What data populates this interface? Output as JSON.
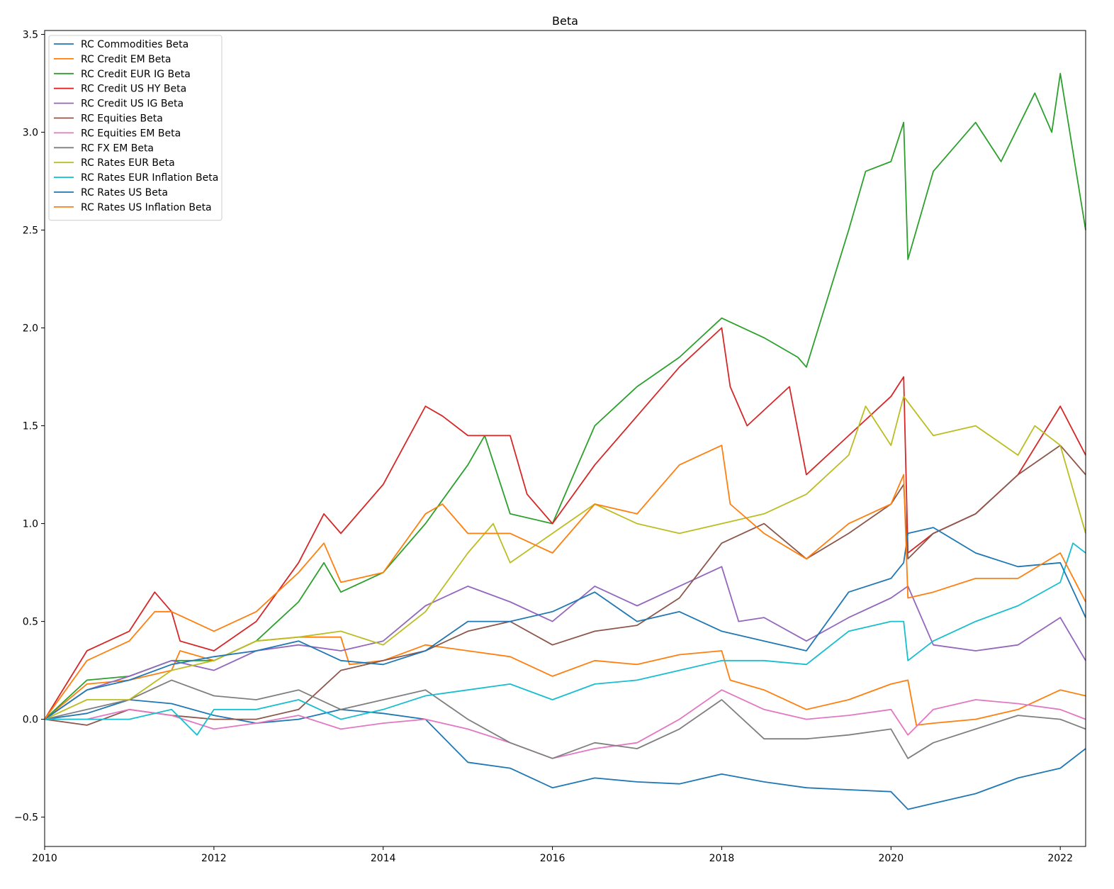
{
  "chart_data": {
    "type": "line",
    "title": "Beta",
    "xlabel": "",
    "ylabel": "",
    "xlim": [
      2010.0,
      2022.3
    ],
    "ylim": [
      -0.65,
      3.52
    ],
    "x_ticks": [
      2010,
      2012,
      2014,
      2016,
      2018,
      2020,
      2022
    ],
    "x_tick_labels": [
      "2010",
      "2012",
      "2014",
      "2016",
      "2018",
      "2020",
      "2022"
    ],
    "y_ticks": [
      -0.5,
      0.0,
      0.5,
      1.0,
      1.5,
      2.0,
      2.5,
      3.0,
      3.5
    ],
    "y_tick_labels": [
      "−0.5",
      "0.0",
      "0.5",
      "1.0",
      "1.5",
      "2.0",
      "2.5",
      "3.0",
      "3.5"
    ],
    "grid": false,
    "legend_position": "upper-left",
    "series": [
      {
        "name": "RC Commodities Beta",
        "color": "#1f77b4",
        "x": [
          2010.0,
          2010.5,
          2011.0,
          2011.5,
          2012.0,
          2012.5,
          2013.0,
          2013.5,
          2014.0,
          2014.5,
          2015.0,
          2015.5,
          2016.0,
          2016.5,
          2017.0,
          2017.5,
          2018.0,
          2018.5,
          2019.0,
          2019.5,
          2020.0,
          2020.2,
          2020.5,
          2021.0,
          2021.5,
          2022.0,
          2022.3
        ],
        "y": [
          0.0,
          0.03,
          0.1,
          0.08,
          0.02,
          -0.02,
          0.0,
          0.05,
          0.03,
          0.0,
          -0.22,
          -0.25,
          -0.35,
          -0.3,
          -0.32,
          -0.33,
          -0.28,
          -0.32,
          -0.35,
          -0.36,
          -0.37,
          -0.46,
          -0.43,
          -0.38,
          -0.3,
          -0.25,
          -0.15
        ]
      },
      {
        "name": "RC Credit EM Beta",
        "color": "#ff7f0e",
        "x": [
          2010.0,
          2010.5,
          2011.0,
          2011.5,
          2011.6,
          2012.0,
          2012.5,
          2013.0,
          2013.5,
          2013.6,
          2014.0,
          2014.5,
          2015.0,
          2015.5,
          2016.0,
          2016.5,
          2017.0,
          2017.5,
          2018.0,
          2018.1,
          2018.5,
          2019.0,
          2019.5,
          2020.0,
          2020.2,
          2020.3,
          2020.5,
          2021.0,
          2021.5,
          2022.0,
          2022.3
        ],
        "y": [
          0.0,
          0.18,
          0.2,
          0.25,
          0.35,
          0.3,
          0.4,
          0.42,
          0.42,
          0.28,
          0.3,
          0.38,
          0.35,
          0.32,
          0.22,
          0.3,
          0.28,
          0.33,
          0.35,
          0.2,
          0.15,
          0.05,
          0.1,
          0.18,
          0.2,
          -0.03,
          -0.02,
          0.0,
          0.05,
          0.15,
          0.12
        ]
      },
      {
        "name": "RC Credit EUR IG Beta",
        "color": "#2ca02c",
        "x": [
          2010.0,
          2010.5,
          2011.0,
          2011.5,
          2012.0,
          2012.5,
          2013.0,
          2013.3,
          2013.5,
          2014.0,
          2014.5,
          2015.0,
          2015.2,
          2015.5,
          2016.0,
          2016.5,
          2017.0,
          2017.5,
          2018.0,
          2018.5,
          2018.9,
          2019.0,
          2019.5,
          2019.7,
          2020.0,
          2020.15,
          2020.2,
          2020.5,
          2021.0,
          2021.3,
          2021.7,
          2021.9,
          2022.0,
          2022.3
        ],
        "y": [
          0.0,
          0.2,
          0.22,
          0.3,
          0.3,
          0.4,
          0.6,
          0.8,
          0.65,
          0.75,
          1.0,
          1.3,
          1.45,
          1.05,
          1.0,
          1.5,
          1.7,
          1.85,
          2.05,
          1.95,
          1.85,
          1.8,
          2.5,
          2.8,
          2.85,
          3.05,
          2.35,
          2.8,
          3.05,
          2.85,
          3.2,
          3.0,
          3.3,
          2.5
        ]
      },
      {
        "name": "RC Credit US HY Beta",
        "color": "#d62728",
        "x": [
          2010.0,
          2010.5,
          2011.0,
          2011.3,
          2011.5,
          2011.6,
          2012.0,
          2012.5,
          2013.0,
          2013.3,
          2013.5,
          2014.0,
          2014.5,
          2014.7,
          2015.0,
          2015.5,
          2015.7,
          2016.0,
          2016.5,
          2017.0,
          2017.5,
          2018.0,
          2018.1,
          2018.3,
          2018.8,
          2019.0,
          2019.5,
          2020.0,
          2020.15,
          2020.2,
          2020.5,
          2021.0,
          2021.5,
          2022.0,
          2022.3
        ],
        "y": [
          0.0,
          0.35,
          0.45,
          0.65,
          0.55,
          0.4,
          0.35,
          0.5,
          0.8,
          1.05,
          0.95,
          1.2,
          1.6,
          1.55,
          1.45,
          1.45,
          1.15,
          1.0,
          1.3,
          1.55,
          1.8,
          2.0,
          1.7,
          1.5,
          1.7,
          1.25,
          1.45,
          1.65,
          1.75,
          0.85,
          0.95,
          1.05,
          1.25,
          1.6,
          1.35
        ]
      },
      {
        "name": "RC Credit US IG Beta",
        "color": "#9467bd",
        "x": [
          2010.0,
          2010.5,
          2011.0,
          2011.5,
          2012.0,
          2012.5,
          2013.0,
          2013.5,
          2014.0,
          2014.5,
          2015.0,
          2015.5,
          2016.0,
          2016.5,
          2017.0,
          2017.5,
          2018.0,
          2018.2,
          2018.5,
          2019.0,
          2019.5,
          2020.0,
          2020.2,
          2020.5,
          2021.0,
          2021.5,
          2022.0,
          2022.3
        ],
        "y": [
          0.0,
          0.15,
          0.22,
          0.3,
          0.25,
          0.35,
          0.38,
          0.35,
          0.4,
          0.58,
          0.68,
          0.6,
          0.5,
          0.68,
          0.58,
          0.68,
          0.78,
          0.5,
          0.52,
          0.4,
          0.52,
          0.62,
          0.68,
          0.38,
          0.35,
          0.38,
          0.52,
          0.3
        ]
      },
      {
        "name": "RC Equities Beta",
        "color": "#8c564b",
        "x": [
          2010.0,
          2010.5,
          2011.0,
          2011.5,
          2012.0,
          2012.5,
          2013.0,
          2013.5,
          2014.0,
          2014.5,
          2015.0,
          2015.5,
          2016.0,
          2016.5,
          2017.0,
          2017.5,
          2018.0,
          2018.5,
          2019.0,
          2019.5,
          2020.0,
          2020.15,
          2020.2,
          2020.5,
          2021.0,
          2021.5,
          2022.0,
          2022.3
        ],
        "y": [
          0.0,
          -0.03,
          0.05,
          0.02,
          0.0,
          0.0,
          0.05,
          0.25,
          0.3,
          0.35,
          0.45,
          0.5,
          0.38,
          0.45,
          0.48,
          0.62,
          0.9,
          1.0,
          0.82,
          0.95,
          1.1,
          1.2,
          0.82,
          0.95,
          1.05,
          1.25,
          1.4,
          1.25
        ]
      },
      {
        "name": "RC Equities EM Beta",
        "color": "#e377c2",
        "x": [
          2010.0,
          2010.5,
          2011.0,
          2011.5,
          2012.0,
          2012.5,
          2013.0,
          2013.5,
          2014.0,
          2014.5,
          2015.0,
          2015.5,
          2016.0,
          2016.5,
          2017.0,
          2017.5,
          2018.0,
          2018.5,
          2019.0,
          2019.5,
          2020.0,
          2020.2,
          2020.5,
          2021.0,
          2021.5,
          2022.0,
          2022.3
        ],
        "y": [
          0.0,
          0.0,
          0.05,
          0.02,
          -0.05,
          -0.02,
          0.02,
          -0.05,
          -0.02,
          0.0,
          -0.05,
          -0.12,
          -0.2,
          -0.15,
          -0.12,
          0.0,
          0.15,
          0.05,
          0.0,
          0.02,
          0.05,
          -0.08,
          0.05,
          0.1,
          0.08,
          0.05,
          0.0
        ]
      },
      {
        "name": "RC FX EM Beta",
        "color": "#7f7f7f",
        "x": [
          2010.0,
          2010.5,
          2011.0,
          2011.5,
          2012.0,
          2012.5,
          2013.0,
          2013.5,
          2014.0,
          2014.5,
          2015.0,
          2015.5,
          2016.0,
          2016.5,
          2017.0,
          2017.5,
          2018.0,
          2018.5,
          2019.0,
          2019.5,
          2020.0,
          2020.2,
          2020.5,
          2021.0,
          2021.5,
          2022.0,
          2022.3
        ],
        "y": [
          0.0,
          0.05,
          0.1,
          0.2,
          0.12,
          0.1,
          0.15,
          0.05,
          0.1,
          0.15,
          0.0,
          -0.12,
          -0.2,
          -0.12,
          -0.15,
          -0.05,
          0.1,
          -0.1,
          -0.1,
          -0.08,
          -0.05,
          -0.2,
          -0.12,
          -0.05,
          0.02,
          0.0,
          -0.05
        ]
      },
      {
        "name": "RC Rates EUR Beta",
        "color": "#bcbd22",
        "x": [
          2010.0,
          2010.5,
          2011.0,
          2011.5,
          2012.0,
          2012.5,
          2013.0,
          2013.5,
          2014.0,
          2014.5,
          2015.0,
          2015.3,
          2015.5,
          2016.0,
          2016.5,
          2017.0,
          2017.5,
          2018.0,
          2018.5,
          2019.0,
          2019.5,
          2019.7,
          2020.0,
          2020.15,
          2020.5,
          2021.0,
          2021.5,
          2021.7,
          2022.0,
          2022.3
        ],
        "y": [
          0.0,
          0.1,
          0.1,
          0.25,
          0.3,
          0.4,
          0.42,
          0.45,
          0.38,
          0.55,
          0.85,
          1.0,
          0.8,
          0.95,
          1.1,
          1.0,
          0.95,
          1.0,
          1.05,
          1.15,
          1.35,
          1.6,
          1.4,
          1.65,
          1.45,
          1.5,
          1.35,
          1.5,
          1.4,
          0.95
        ]
      },
      {
        "name": "RC Rates EUR Inflation Beta",
        "color": "#17becf",
        "x": [
          2010.0,
          2010.5,
          2011.0,
          2011.5,
          2011.8,
          2012.0,
          2012.5,
          2013.0,
          2013.5,
          2014.0,
          2014.5,
          2015.0,
          2015.5,
          2016.0,
          2016.5,
          2017.0,
          2017.5,
          2018.0,
          2018.5,
          2019.0,
          2019.5,
          2020.0,
          2020.15,
          2020.2,
          2020.5,
          2021.0,
          2021.5,
          2022.0,
          2022.15,
          2022.3
        ],
        "y": [
          0.0,
          0.0,
          0.0,
          0.05,
          -0.08,
          0.05,
          0.05,
          0.1,
          0.0,
          0.05,
          0.12,
          0.15,
          0.18,
          0.1,
          0.18,
          0.2,
          0.25,
          0.3,
          0.3,
          0.28,
          0.45,
          0.5,
          0.5,
          0.3,
          0.4,
          0.5,
          0.58,
          0.7,
          0.9,
          0.85
        ]
      },
      {
        "name": "RC Rates US Beta",
        "color": "#1f77b4",
        "x": [
          2010.0,
          2010.5,
          2011.0,
          2011.5,
          2012.0,
          2012.5,
          2013.0,
          2013.5,
          2014.0,
          2014.5,
          2015.0,
          2015.5,
          2016.0,
          2016.5,
          2017.0,
          2017.5,
          2018.0,
          2018.5,
          2019.0,
          2019.5,
          2020.0,
          2020.15,
          2020.2,
          2020.5,
          2021.0,
          2021.5,
          2022.0,
          2022.3
        ],
        "y": [
          0.0,
          0.15,
          0.2,
          0.28,
          0.32,
          0.35,
          0.4,
          0.3,
          0.28,
          0.35,
          0.5,
          0.5,
          0.55,
          0.65,
          0.5,
          0.55,
          0.45,
          0.4,
          0.35,
          0.65,
          0.72,
          0.8,
          0.95,
          0.98,
          0.85,
          0.78,
          0.8,
          0.52
        ]
      },
      {
        "name": "RC Rates US Inflation Beta",
        "color": "#ff7f0e",
        "x": [
          2010.0,
          2010.5,
          2011.0,
          2011.3,
          2011.5,
          2012.0,
          2012.5,
          2013.0,
          2013.3,
          2013.5,
          2014.0,
          2014.5,
          2014.7,
          2015.0,
          2015.5,
          2016.0,
          2016.5,
          2017.0,
          2017.5,
          2018.0,
          2018.1,
          2018.5,
          2019.0,
          2019.5,
          2020.0,
          2020.15,
          2020.2,
          2020.5,
          2021.0,
          2021.5,
          2022.0,
          2022.3
        ],
        "y": [
          0.0,
          0.3,
          0.4,
          0.55,
          0.55,
          0.45,
          0.55,
          0.75,
          0.9,
          0.7,
          0.75,
          1.05,
          1.1,
          0.95,
          0.95,
          0.85,
          1.1,
          1.05,
          1.3,
          1.4,
          1.1,
          0.95,
          0.82,
          1.0,
          1.1,
          1.25,
          0.62,
          0.65,
          0.72,
          0.72,
          0.85,
          0.6
        ]
      }
    ]
  }
}
